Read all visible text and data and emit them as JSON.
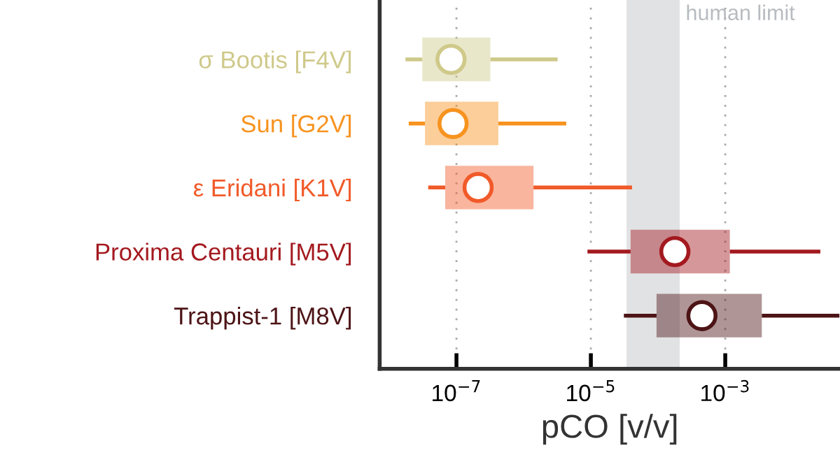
{
  "chart_data": {
    "type": "box",
    "orientation": "horizontal",
    "xlabel": "pCO [v/v]",
    "categories": [
      "σ Bootis [F4V]",
      "Sun [G2V]",
      "ε Eridani [K1V]",
      "Proxima Centauri [M5V]",
      "Trappist-1 [M8V]"
    ],
    "colors": [
      "#cfc98a",
      "#f7931e",
      "#f15a29",
      "#a3191f",
      "#4d1416"
    ],
    "boxes": [
      {
        "low": 1.74e-08,
        "q1": 3.1e-08,
        "median": 8.3e-08,
        "q3": 3.2e-07,
        "high": 3.2e-06
      },
      {
        "low": 1.95e-08,
        "q1": 3.4e-08,
        "median": 8.9e-08,
        "q3": 4.2e-07,
        "high": 4.3e-06
      },
      {
        "low": 3.8e-08,
        "q1": 6.8e-08,
        "median": 2.1e-07,
        "q3": 1.4e-06,
        "high": 4.1e-05
      },
      {
        "low": 8.9e-06,
        "q1": 3.9e-05,
        "median": 0.000178,
        "q3": 0.00117,
        "high": 0.026
      },
      {
        "low": 3.1e-05,
        "q1": 9.5e-05,
        "median": 0.00045,
        "q3": 0.0035,
        "high": 0.05
      }
    ],
    "log": "x",
    "xlim": [
      7.2e-09,
      0.051
    ],
    "xticks": [
      {
        "value": 1e-07,
        "label": "10$^{−7}$"
      },
      {
        "value": 1e-05,
        "label": "10$^{−5}$"
      },
      {
        "value": 0.001,
        "label": "10$^{−3}$"
      }
    ],
    "grid": "x",
    "marker": "circle",
    "legend": false,
    "bands": [
      {
        "axis": "x",
        "from": 3.4e-05,
        "to": 0.00021,
        "label": "human limit",
        "color": "#e1e2e3"
      }
    ]
  }
}
